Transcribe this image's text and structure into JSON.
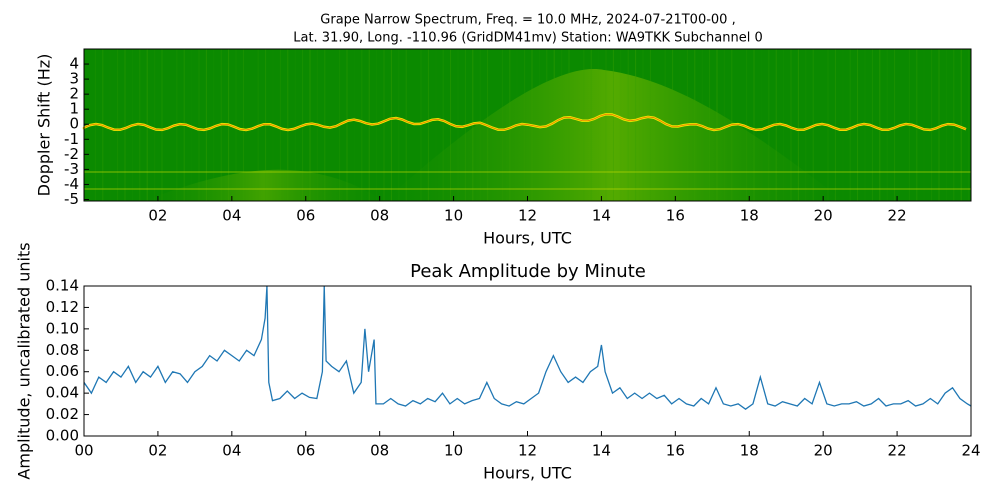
{
  "chart_data": [
    {
      "type": "spectrogram",
      "title": [
        "Grape Narrow Spectrum, Freq. = 10.0 MHz, 2024-07-21T00-00 ,",
        "Lat.  31.90, Long. -110.96 (GridDM41mv) Station: WA9TKK Subchannel 0"
      ],
      "xlabel": "Hours, UTC",
      "ylabel": "Doppler Shift (Hz)",
      "xlim": [
        0,
        24
      ],
      "ylim": [
        -5.1,
        5.0
      ],
      "xticks": [
        {
          "value": 2,
          "label": "02"
        },
        {
          "value": 4,
          "label": "04"
        },
        {
          "value": 6,
          "label": "06"
        },
        {
          "value": 8,
          "label": "08"
        },
        10,
        12,
        14,
        16,
        18,
        20,
        22
      ],
      "yticks": [
        -5,
        -4,
        -3,
        -2,
        -1,
        0,
        1,
        2,
        3,
        4
      ]
    },
    {
      "type": "line",
      "title": "Peak Amplitude by Minute",
      "xlabel": "Hours, UTC",
      "ylabel": "Amplitude, uncalibrated units",
      "xlim": [
        0,
        24
      ],
      "ylim": [
        0,
        0.14
      ],
      "xticks": [
        {
          "value": 0,
          "label": "00"
        },
        {
          "value": 2,
          "label": "02"
        },
        {
          "value": 4,
          "label": "04"
        },
        {
          "value": 6,
          "label": "06"
        },
        {
          "value": 8,
          "label": "08"
        },
        10,
        12,
        14,
        16,
        18,
        20,
        22,
        24
      ],
      "yticks": [
        {
          "value": 0,
          "label": "0.00"
        },
        {
          "value": 0.02,
          "label": "0.02"
        },
        {
          "value": 0.04,
          "label": "0.04"
        },
        {
          "value": 0.06,
          "label": "0.06"
        },
        {
          "value": 0.08,
          "label": "0.08"
        },
        {
          "value": 0.1,
          "label": "0.10"
        },
        {
          "value": 0.12,
          "label": "0.12"
        },
        {
          "value": 0.14,
          "label": "0.14"
        }
      ],
      "color": "#1f77b4",
      "x": [
        0,
        0.2,
        0.4,
        0.6,
        0.8,
        1,
        1.2,
        1.4,
        1.6,
        1.8,
        2,
        2.2,
        2.4,
        2.6,
        2.8,
        3,
        3.2,
        3.4,
        3.6,
        3.8,
        4,
        4.2,
        4.4,
        4.6,
        4.8,
        4.9,
        4.95,
        5,
        5.1,
        5.3,
        5.5,
        5.7,
        5.9,
        6.1,
        6.3,
        6.45,
        6.5,
        6.55,
        6.7,
        6.9,
        7.1,
        7.3,
        7.5,
        7.6,
        7.7,
        7.85,
        7.9,
        8.1,
        8.3,
        8.5,
        8.7,
        8.9,
        9.1,
        9.3,
        9.5,
        9.7,
        9.9,
        10.1,
        10.3,
        10.5,
        10.7,
        10.9,
        11.1,
        11.3,
        11.5,
        11.7,
        11.9,
        12.1,
        12.3,
        12.5,
        12.7,
        12.9,
        13.1,
        13.3,
        13.5,
        13.7,
        13.9,
        14,
        14.1,
        14.3,
        14.5,
        14.7,
        14.9,
        15.1,
        15.3,
        15.5,
        15.7,
        15.9,
        16.1,
        16.3,
        16.5,
        16.7,
        16.9,
        17.1,
        17.3,
        17.5,
        17.7,
        17.9,
        18.1,
        18.3,
        18.5,
        18.7,
        18.9,
        19.1,
        19.3,
        19.5,
        19.7,
        19.9,
        20.1,
        20.3,
        20.5,
        20.7,
        20.9,
        21.1,
        21.3,
        21.5,
        21.7,
        21.9,
        22.1,
        22.3,
        22.5,
        22.7,
        22.9,
        23.1,
        23.3,
        23.5,
        23.7,
        23.9,
        24
      ],
      "values": [
        0.05,
        0.04,
        0.055,
        0.05,
        0.06,
        0.055,
        0.065,
        0.05,
        0.06,
        0.055,
        0.065,
        0.05,
        0.06,
        0.058,
        0.05,
        0.06,
        0.065,
        0.075,
        0.07,
        0.08,
        0.075,
        0.07,
        0.08,
        0.075,
        0.09,
        0.11,
        0.14,
        0.05,
        0.033,
        0.035,
        0.042,
        0.035,
        0.04,
        0.036,
        0.035,
        0.06,
        0.14,
        0.07,
        0.065,
        0.06,
        0.07,
        0.04,
        0.05,
        0.1,
        0.06,
        0.09,
        0.03,
        0.03,
        0.035,
        0.03,
        0.028,
        0.033,
        0.03,
        0.035,
        0.032,
        0.04,
        0.03,
        0.035,
        0.03,
        0.033,
        0.035,
        0.05,
        0.035,
        0.03,
        0.028,
        0.032,
        0.03,
        0.035,
        0.04,
        0.06,
        0.075,
        0.06,
        0.05,
        0.055,
        0.05,
        0.06,
        0.065,
        0.085,
        0.06,
        0.04,
        0.045,
        0.035,
        0.04,
        0.035,
        0.04,
        0.035,
        0.038,
        0.03,
        0.035,
        0.03,
        0.028,
        0.035,
        0.03,
        0.045,
        0.03,
        0.028,
        0.03,
        0.025,
        0.03,
        0.055,
        0.03,
        0.028,
        0.032,
        0.03,
        0.028,
        0.035,
        0.03,
        0.05,
        0.03,
        0.028,
        0.03,
        0.03,
        0.032,
        0.028,
        0.03,
        0.035,
        0.028,
        0.03,
        0.03,
        0.033,
        0.028,
        0.03,
        0.035,
        0.03,
        0.04,
        0.045,
        0.035,
        0.03,
        0.028
      ]
    }
  ]
}
